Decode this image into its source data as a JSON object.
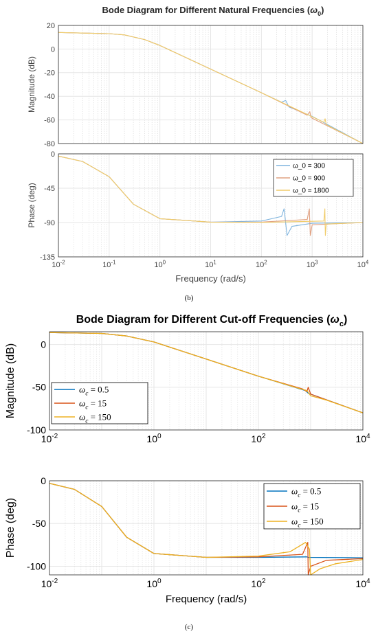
{
  "figure_b": {
    "title_prefix": "Bode Diagram for Different Natural Frequencies (",
    "title_symbol": "ω",
    "title_sub": "0",
    "title_suffix": ")",
    "caption": "(b)"
  },
  "figure_c": {
    "title_prefix": "Bode Diagram for Different Cut-off Frequencies (",
    "title_symbol": "ω",
    "title_sub": "c",
    "title_suffix": ")",
    "caption": "(c)"
  },
  "chart_data": [
    {
      "id": "b-mag",
      "type": "line",
      "title": "",
      "ylabel": "Magnitude (dB)",
      "xscale": "log",
      "xlim": [
        0.01,
        10000
      ],
      "ylim": [
        -80,
        20
      ],
      "yticks": [
        "20",
        "0",
        "-20",
        "-40",
        "-60",
        "-80"
      ],
      "grid": true,
      "color_theme": {
        "axes": "#262626",
        "text": "#404040"
      },
      "series": [
        {
          "name": "ω_0 = 300",
          "color": "#7fb4de",
          "resonance": 300,
          "x": [
            0.01,
            0.1,
            0.2,
            0.5,
            1,
            10,
            100,
            250,
            300,
            350,
            1000,
            10000
          ],
          "y": [
            14,
            13,
            12,
            8,
            3,
            -17,
            -37,
            -45,
            -43.5,
            -49,
            -57,
            -80
          ]
        },
        {
          "name": "ω_0 = 900",
          "color": "#e0a080",
          "resonance": 900,
          "x": [
            0.01,
            0.1,
            0.2,
            0.5,
            1,
            10,
            100,
            800,
            900,
            950,
            10000
          ],
          "y": [
            14,
            13,
            12,
            8,
            3,
            -17,
            -37,
            -56,
            -53,
            -58,
            -80
          ]
        },
        {
          "name": "ω_0 = 1800",
          "color": "#f0cc6a",
          "resonance": 1800,
          "x": [
            0.01,
            0.1,
            0.2,
            0.5,
            1,
            10,
            100,
            1700,
            1800,
            1900,
            10000
          ],
          "y": [
            14,
            13,
            12,
            8,
            3,
            -17,
            -37,
            -62,
            -59,
            -64,
            -80
          ]
        }
      ]
    },
    {
      "id": "b-phase",
      "type": "line",
      "title": "",
      "xlabel": "Frequency  (rad/s)",
      "ylabel": "Phase (deg)",
      "xscale": "log",
      "xlim": [
        0.01,
        10000
      ],
      "ylim": [
        -135,
        0
      ],
      "yticks": [
        "0",
        "-45",
        "-90",
        "-135"
      ],
      "xticks": [
        "10^-2",
        "10^-1",
        "10^0",
        "10^1",
        "10^2",
        "10^3",
        "10^4"
      ],
      "legend": "top-right",
      "grid": true,
      "series": [
        {
          "name": "ω_0 = 300",
          "color": "#7fb4de",
          "resonance": 300,
          "x": [
            0.01,
            0.03,
            0.1,
            0.3,
            1,
            10,
            100,
            250,
            280,
            300,
            320,
            400,
            1000,
            10000
          ],
          "y": [
            -3,
            -10,
            -30,
            -66,
            -85,
            -89.5,
            -88,
            -82,
            -72,
            -90,
            -107,
            -95,
            -91,
            -90
          ]
        },
        {
          "name": "ω_0 = 900",
          "color": "#e0a080",
          "resonance": 900,
          "x": [
            0.01,
            0.03,
            0.1,
            0.3,
            1,
            10,
            100,
            800,
            880,
            900,
            920,
            1000,
            10000
          ],
          "y": [
            -3,
            -10,
            -30,
            -66,
            -85,
            -89.5,
            -89.5,
            -86,
            -72,
            -90,
            -107,
            -93,
            -90
          ]
        },
        {
          "name": "ω_0 = 1800",
          "color": "#f0cc6a",
          "resonance": 1800,
          "x": [
            0.01,
            0.03,
            0.1,
            0.3,
            1,
            10,
            100,
            1700,
            1780,
            1800,
            1820,
            1900,
            10000
          ],
          "y": [
            -3,
            -10,
            -30,
            -66,
            -85,
            -89.5,
            -89.8,
            -88,
            -72,
            -90,
            -107,
            -92,
            -90
          ]
        }
      ]
    },
    {
      "id": "c-mag",
      "type": "line",
      "title": "",
      "ylabel": "Magnitude (dB)",
      "xscale": "log",
      "xlim": [
        0.01,
        10000
      ],
      "ylim": [
        -100,
        15
      ],
      "yticks": [
        "0",
        "-50",
        "-100"
      ],
      "xticks": [
        "10^-2",
        "10^0",
        "10^2",
        "10^4"
      ],
      "legend": "bottom-left",
      "grid": true,
      "series": [
        {
          "name": "ω_c = 0.5",
          "color": "#0072bd",
          "x": [
            0.01,
            0.1,
            0.3,
            1,
            10,
            100,
            800,
            900,
            1000,
            10000
          ],
          "y": [
            14,
            13,
            10,
            3,
            -17,
            -37,
            -54,
            -57,
            -58,
            -80
          ]
        },
        {
          "name": "ω_c = 15",
          "color": "#d95319",
          "x": [
            0.01,
            0.1,
            0.3,
            1,
            10,
            100,
            700,
            850,
            900,
            1000,
            10000
          ],
          "y": [
            14,
            13,
            10,
            3,
            -17,
            -37,
            -52,
            -55,
            -50,
            -58,
            -80
          ]
        },
        {
          "name": "ω_c = 150",
          "color": "#edb120",
          "x": [
            0.01,
            0.1,
            0.3,
            1,
            10,
            100,
            500,
            850,
            1000,
            2000,
            10000
          ],
          "y": [
            14,
            13,
            10,
            3,
            -17,
            -37,
            -50,
            -54,
            -60,
            -65,
            -80
          ]
        }
      ]
    },
    {
      "id": "c-phase",
      "type": "line",
      "title": "",
      "xlabel": "Frequency (rad/s)",
      "ylabel": "Phase (deg)",
      "xscale": "log",
      "xlim": [
        0.01,
        10000
      ],
      "ylim": [
        -110,
        0
      ],
      "yticks": [
        "0",
        "-50",
        "-100"
      ],
      "xticks": [
        "10^-2",
        "10^0",
        "10^2",
        "10^4"
      ],
      "legend": "top-right",
      "grid": true,
      "series": [
        {
          "name": "ω_c = 0.5",
          "color": "#0072bd",
          "x": [
            0.01,
            0.03,
            0.1,
            0.3,
            1,
            10,
            100,
            850,
            900,
            10000
          ],
          "y": [
            -3,
            -10,
            -30,
            -66,
            -85,
            -89.5,
            -89.5,
            -89,
            -89.5,
            -90
          ]
        },
        {
          "name": "ω_c = 15",
          "color": "#d95319",
          "x": [
            0.01,
            0.03,
            0.1,
            0.3,
            1,
            10,
            100,
            700,
            880,
            900,
            1000,
            2000,
            10000
          ],
          "y": [
            -3,
            -10,
            -30,
            -66,
            -85,
            -89.5,
            -89,
            -86,
            -72,
            -110,
            -100,
            -93,
            -91
          ]
        },
        {
          "name": "ω_c = 150",
          "color": "#edb120",
          "x": [
            0.01,
            0.03,
            0.1,
            0.3,
            1,
            10,
            100,
            400,
            800,
            950,
            1000,
            1500,
            3000,
            10000
          ],
          "y": [
            -3,
            -10,
            -30,
            -66,
            -85,
            -89.5,
            -88,
            -83,
            -72,
            -80,
            -110,
            -103,
            -97,
            -92
          ]
        }
      ]
    }
  ]
}
